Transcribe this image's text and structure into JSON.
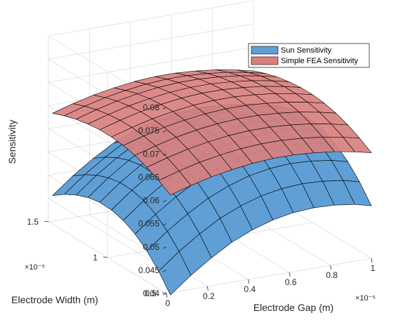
{
  "chart_data": {
    "type": "surface3d",
    "x_label": "Electrode Gap (m)",
    "y_label": "Electrode Width (m)",
    "z_label": "Sensitivity",
    "x_ticks": [
      "0",
      "0.2",
      "0.4",
      "0.6",
      "0.8",
      "1"
    ],
    "y_ticks": [
      "0.5",
      "1",
      "1.5"
    ],
    "z_ticks": [
      "0.04",
      "0.045",
      "0.05",
      "0.055",
      "0.06",
      "0.065",
      "0.07",
      "0.075",
      "0.08"
    ],
    "x_exponent": "×10⁻⁵",
    "y_exponent": "×10⁻⁵",
    "xlim": [
      0,
      1
    ],
    "ylim": [
      0.5,
      1.5
    ],
    "zlim": [
      0.04,
      0.08
    ],
    "x_scale_exponent": -5,
    "y_scale_exponent": -5,
    "grid": true,
    "legend_position": "top-right",
    "series": [
      {
        "name": "Sun Sensitivity",
        "color": "#5f9fd6",
        "x": [
          0.02,
          0.12,
          0.22,
          0.32,
          0.42,
          0.52,
          0.62,
          0.72,
          0.82,
          0.92,
          1.0
        ],
        "y": [
          0.5,
          0.6,
          0.7,
          0.8,
          0.9,
          1.0,
          1.1,
          1.2,
          1.3,
          1.4,
          1.5
        ],
        "z": [
          [
            0.0395,
            0.043,
            0.046,
            0.0486,
            0.0505,
            0.0519,
            0.0527,
            0.053,
            0.0528,
            0.0522,
            0.0513
          ],
          [
            0.0431,
            0.0466,
            0.0496,
            0.0522,
            0.0541,
            0.0555,
            0.0563,
            0.0566,
            0.0564,
            0.0558,
            0.0549
          ],
          [
            0.0459,
            0.0494,
            0.0524,
            0.055,
            0.0569,
            0.0583,
            0.0591,
            0.0594,
            0.0592,
            0.0586,
            0.0577
          ],
          [
            0.048,
            0.0515,
            0.0545,
            0.0571,
            0.059,
            0.0604,
            0.0612,
            0.0615,
            0.0613,
            0.0607,
            0.0598
          ],
          [
            0.0494,
            0.0529,
            0.0559,
            0.0585,
            0.0604,
            0.0618,
            0.0626,
            0.0629,
            0.0627,
            0.0621,
            0.0612
          ],
          [
            0.0501,
            0.0536,
            0.0566,
            0.0592,
            0.0611,
            0.0625,
            0.0633,
            0.0636,
            0.0634,
            0.0628,
            0.0619
          ],
          [
            0.0502,
            0.0537,
            0.0567,
            0.0593,
            0.0612,
            0.0626,
            0.0634,
            0.0637,
            0.0635,
            0.0629,
            0.062
          ],
          [
            0.0497,
            0.0532,
            0.0562,
            0.0588,
            0.0607,
            0.0621,
            0.0629,
            0.0632,
            0.063,
            0.0624,
            0.0615
          ],
          [
            0.0487,
            0.0522,
            0.0552,
            0.0578,
            0.0597,
            0.0611,
            0.0619,
            0.0622,
            0.062,
            0.0614,
            0.0605
          ],
          [
            0.0473,
            0.0508,
            0.0538,
            0.0564,
            0.0583,
            0.0597,
            0.0605,
            0.0608,
            0.0606,
            0.06,
            0.0591
          ],
          [
            0.0455,
            0.049,
            0.052,
            0.0546,
            0.0565,
            0.0579,
            0.0587,
            0.059,
            0.0588,
            0.0582,
            0.0573
          ]
        ]
      },
      {
        "name": "Simple FEA Sensitivity",
        "color": "#d9807f",
        "x": [
          0.02,
          0.12,
          0.22,
          0.32,
          0.42,
          0.52,
          0.62,
          0.72,
          0.82,
          0.92,
          1.0
        ],
        "y": [
          0.5,
          0.6,
          0.7,
          0.8,
          0.9,
          1.0,
          1.1,
          1.2,
          1.3,
          1.4,
          1.5
        ],
        "z": [
          [
            0.061,
            0.0623,
            0.0634,
            0.0642,
            0.0648,
            0.0651,
            0.0651,
            0.0648,
            0.0643,
            0.0635,
            0.0627
          ],
          [
            0.0626,
            0.0639,
            0.065,
            0.0658,
            0.0664,
            0.0667,
            0.0667,
            0.0664,
            0.0659,
            0.0651,
            0.0643
          ],
          [
            0.0639,
            0.0652,
            0.0663,
            0.0671,
            0.0677,
            0.068,
            0.068,
            0.0677,
            0.0672,
            0.0664,
            0.0656
          ],
          [
            0.0649,
            0.0662,
            0.0673,
            0.0681,
            0.0687,
            0.069,
            0.069,
            0.0687,
            0.0682,
            0.0674,
            0.0666
          ],
          [
            0.0655,
            0.0668,
            0.0679,
            0.0687,
            0.0693,
            0.0696,
            0.0696,
            0.0693,
            0.0688,
            0.068,
            0.0672
          ],
          [
            0.0658,
            0.0671,
            0.0682,
            0.069,
            0.0696,
            0.0699,
            0.0699,
            0.0696,
            0.0691,
            0.0683,
            0.0675
          ],
          [
            0.0658,
            0.0671,
            0.0682,
            0.069,
            0.0696,
            0.0699,
            0.0699,
            0.0696,
            0.0691,
            0.0683,
            0.0675
          ],
          [
            0.0655,
            0.0668,
            0.0679,
            0.0687,
            0.0693,
            0.0696,
            0.0696,
            0.0693,
            0.0688,
            0.068,
            0.0672
          ],
          [
            0.065,
            0.0663,
            0.0674,
            0.0682,
            0.0688,
            0.0691,
            0.0691,
            0.0688,
            0.0683,
            0.0675,
            0.0667
          ],
          [
            0.0642,
            0.0655,
            0.0666,
            0.0674,
            0.068,
            0.0683,
            0.0683,
            0.068,
            0.0675,
            0.0667,
            0.0659
          ],
          [
            0.0632,
            0.0645,
            0.0656,
            0.0664,
            0.067,
            0.0673,
            0.0673,
            0.067,
            0.0665,
            0.0657,
            0.0649
          ]
        ]
      }
    ]
  }
}
